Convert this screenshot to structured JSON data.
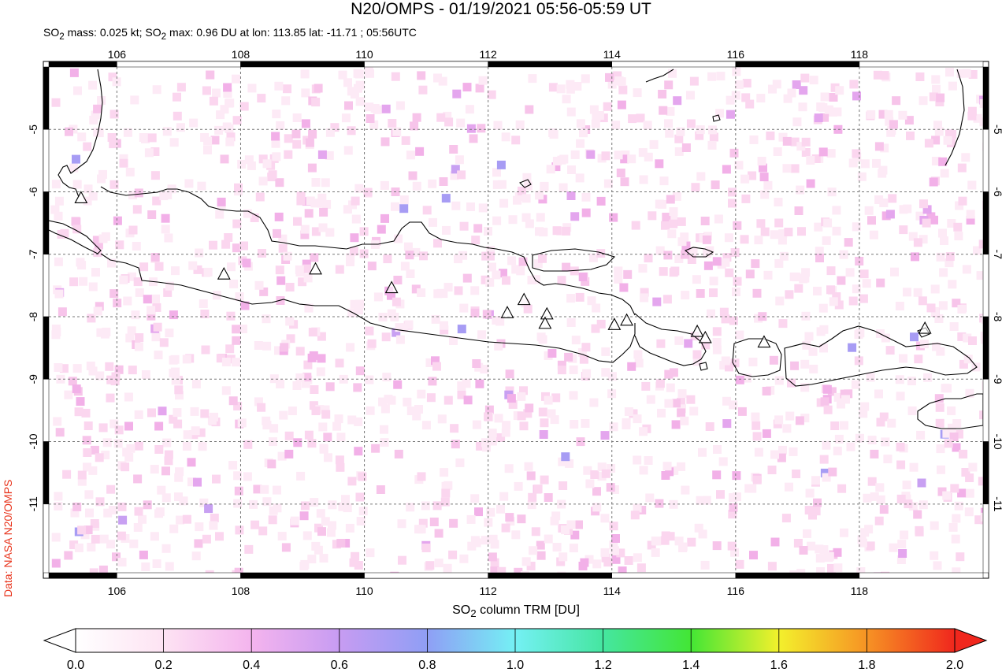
{
  "title": "N20/OMPS - 01/19/2021 05:56-05:59 UT",
  "subtitle_html": "SO<sub>2</sub> mass: 0.025 kt; SO<sub>2</sub> max: 0.96 DU at lon: 113.85 lat: -11.71 ; 05:56UTC",
  "credit": "Data: NASA N20/OMPS",
  "colorbar_title_html": "SO<sub>2</sub> column TRM [DU]",
  "map": {
    "lon_range": [
      104.9,
      120.0
    ],
    "lat_range": [
      -12.1,
      -4.0
    ],
    "lon_ticks": [
      "106",
      "108",
      "110",
      "112",
      "114",
      "116",
      "118"
    ],
    "lat_ticks": [
      "-5",
      "-6",
      "-7",
      "-8",
      "-9",
      "-10",
      "-11"
    ],
    "volcanoes": [
      {
        "lon": 105.42,
        "lat": -6.1
      },
      {
        "lon": 107.73,
        "lat": -7.32
      },
      {
        "lon": 109.21,
        "lat": -7.24
      },
      {
        "lon": 110.44,
        "lat": -7.54
      },
      {
        "lon": 112.31,
        "lat": -7.94
      },
      {
        "lon": 112.58,
        "lat": -7.73
      },
      {
        "lon": 112.95,
        "lat": -7.96
      },
      {
        "lon": 112.92,
        "lat": -8.11
      },
      {
        "lon": 114.04,
        "lat": -8.13
      },
      {
        "lon": 114.24,
        "lat": -8.06
      },
      {
        "lon": 115.38,
        "lat": -8.24
      },
      {
        "lon": 115.51,
        "lat": -8.34
      },
      {
        "lon": 116.46,
        "lat": -8.41
      },
      {
        "lon": 119.06,
        "lat": -8.19
      }
    ]
  },
  "colorbar": {
    "min": 0.0,
    "max": 2.0,
    "tick_labels": [
      "0.0",
      "0.2",
      "0.4",
      "0.6",
      "0.8",
      "1.0",
      "1.2",
      "1.4",
      "1.6",
      "1.8",
      "2.0"
    ],
    "colors": [
      "#ffffff",
      "#fde3f3",
      "#f4b4ee",
      "#c79cf2",
      "#8f9ef5",
      "#74f0f4",
      "#45e6a0",
      "#43e635",
      "#f3f02c",
      "#f69324",
      "#f0271d"
    ]
  }
}
